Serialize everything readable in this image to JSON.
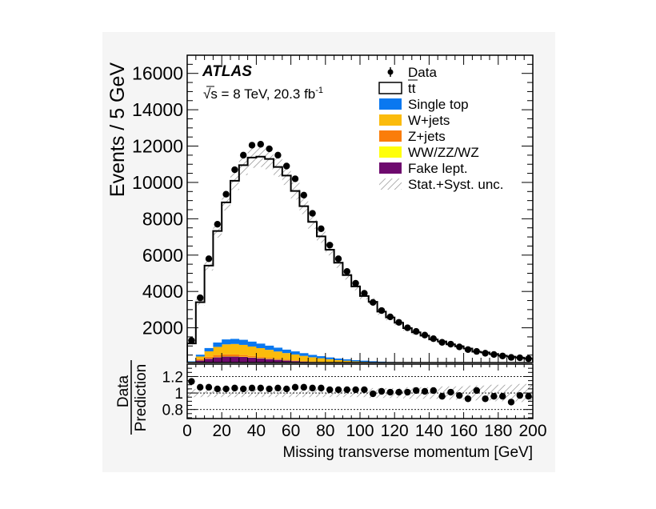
{
  "chart_data": {
    "type": "bar",
    "subtype": "stacked histogram with data points and ratio panel",
    "experiment_label": "ATLAS",
    "energy_lumi_label": "√s = 8 TeV, 20.3 fb",
    "lumi_superscript": "-1",
    "xlabel": "Missing transverse momentum [GeV]",
    "ylabel": "Events / 5 GeV",
    "ratio_ylabel_numerator": "Data",
    "ratio_ylabel_denominator": "Prediction",
    "xlim": [
      0,
      200
    ],
    "ylim": [
      0,
      17000
    ],
    "ratio_ylim": [
      0.69,
      1.35
    ],
    "x_ticks": [
      "0",
      "20",
      "40",
      "60",
      "80",
      "100",
      "120",
      "140",
      "160",
      "180",
      "200"
    ],
    "y_ticks": [
      "2000",
      "4000",
      "6000",
      "8000",
      "10000",
      "12000",
      "14000",
      "16000"
    ],
    "ratio_ticks": [
      "0.8",
      "1",
      "1.2"
    ],
    "ratio_gridlines": [
      0.8,
      1.0,
      1.2
    ],
    "legend_position": "top-right",
    "legend": [
      {
        "label": "Data",
        "kind": "marker"
      },
      {
        "label": "tt",
        "kind": "outline",
        "overbar": true
      },
      {
        "label": "Single top",
        "kind": "fill",
        "color": "#0a78f0"
      },
      {
        "label": "W+jets",
        "kind": "fill",
        "color": "#fbbb0c"
      },
      {
        "label": "Z+jets",
        "kind": "fill",
        "color": "#fa7d0a"
      },
      {
        "label": "WW/ZZ/WZ",
        "kind": "fill",
        "color": "#ffff0a"
      },
      {
        "label": "Fake lept.",
        "kind": "fill",
        "color": "#6e0a6e"
      },
      {
        "label": "Stat.+Syst. unc.",
        "kind": "hatch"
      }
    ],
    "bin_width": 5,
    "bin_centers": [
      2.5,
      7.5,
      12.5,
      17.5,
      22.5,
      27.5,
      32.5,
      37.5,
      42.5,
      47.5,
      52.5,
      57.5,
      62.5,
      67.5,
      72.5,
      77.5,
      82.5,
      87.5,
      92.5,
      97.5,
      102.5,
      107.5,
      112.5,
      117.5,
      122.5,
      127.5,
      132.5,
      137.5,
      142.5,
      147.5,
      152.5,
      157.5,
      162.5,
      167.5,
      172.5,
      177.5,
      182.5,
      187.5,
      192.5,
      197.5
    ],
    "data": [
      1300,
      3650,
      5800,
      7700,
      9350,
      10700,
      11500,
      12050,
      12100,
      11850,
      11500,
      10900,
      10200,
      9300,
      8300,
      7450,
      6550,
      5800,
      5100,
      4450,
      3900,
      3400,
      2950,
      2600,
      2300,
      2000,
      1800,
      1600,
      1400,
      1200,
      1100,
      950,
      800,
      700,
      600,
      530,
      450,
      370,
      350,
      300
    ],
    "series": [
      {
        "name": "Fake lept.",
        "values": [
          60,
          200,
          300,
          380,
          420,
          420,
          400,
          360,
          320,
          280,
          240,
          200,
          170,
          140,
          110,
          90,
          70,
          55,
          45,
          35,
          28,
          22,
          18,
          14,
          11,
          9,
          7,
          6,
          5,
          4,
          3,
          3,
          2,
          2,
          2,
          1,
          1,
          1,
          1,
          1
        ]
      },
      {
        "name": "WW/ZZ/WZ",
        "values": [
          5,
          10,
          15,
          20,
          20,
          20,
          20,
          20,
          20,
          18,
          16,
          14,
          12,
          10,
          9,
          8,
          7,
          6,
          5,
          4,
          4,
          3,
          3,
          2,
          2,
          2,
          2,
          1,
          1,
          1,
          1,
          1,
          1,
          1,
          1,
          1,
          1,
          1,
          1,
          1
        ]
      },
      {
        "name": "Z+jets",
        "values": [
          20,
          60,
          90,
          100,
          100,
          90,
          80,
          70,
          60,
          50,
          40,
          35,
          30,
          25,
          20,
          15,
          12,
          10,
          8,
          6,
          5,
          4,
          3,
          3,
          2,
          2,
          2,
          1,
          1,
          1,
          1,
          1,
          1,
          1,
          0,
          0,
          0,
          0,
          0,
          0
        ]
      },
      {
        "name": "W+jets",
        "values": [
          40,
          150,
          300,
          450,
          550,
          580,
          560,
          520,
          480,
          440,
          400,
          360,
          320,
          280,
          240,
          210,
          180,
          150,
          130,
          110,
          95,
          80,
          70,
          60,
          50,
          45,
          40,
          35,
          30,
          26,
          22,
          20,
          18,
          16,
          14,
          12,
          10,
          9,
          8,
          7
        ]
      },
      {
        "name": "Single top",
        "values": [
          30,
          100,
          180,
          240,
          270,
          280,
          280,
          270,
          250,
          230,
          210,
          190,
          170,
          150,
          130,
          115,
          100,
          88,
          76,
          66,
          58,
          50,
          44,
          38,
          33,
          29,
          25,
          22,
          19,
          17,
          15,
          13,
          12,
          10,
          9,
          8,
          7,
          6,
          5,
          5
        ]
      },
      {
        "name": "tt",
        "values": [
          985,
          2890,
          4535,
          6140,
          7540,
          8700,
          9610,
          10130,
          10290,
          10272,
          9944,
          9581,
          8828,
          8085,
          7321,
          6592,
          5931,
          5271,
          4636,
          4059,
          3560,
          3271,
          2752,
          2453,
          2182,
          1893,
          1674,
          1505,
          1304,
          1201,
          1048,
          942,
          826,
          650,
          619,
          528,
          451,
          398,
          345,
          296
        ]
      }
    ],
    "ratio": [
      1.14,
      1.07,
      1.07,
      1.05,
      1.05,
      1.06,
      1.05,
      1.06,
      1.06,
      1.05,
      1.06,
      1.05,
      1.07,
      1.07,
      1.06,
      1.06,
      1.04,
      1.04,
      1.04,
      1.04,
      1.04,
      0.99,
      1.02,
      1.01,
      1.01,
      1.01,
      1.03,
      1.02,
      1.03,
      0.96,
      1.01,
      0.97,
      0.93,
      1.03,
      0.93,
      0.96,
      0.96,
      0.89,
      0.97,
      0.96
    ],
    "stat_syst_unc_rel": [
      0.05,
      0.05,
      0.05,
      0.05,
      0.05,
      0.05,
      0.05,
      0.05,
      0.05,
      0.05,
      0.05,
      0.05,
      0.05,
      0.05,
      0.05,
      0.05,
      0.05,
      0.05,
      0.05,
      0.05,
      0.05,
      0.06,
      0.06,
      0.06,
      0.06,
      0.07,
      0.07,
      0.07,
      0.07,
      0.08,
      0.08,
      0.08,
      0.09,
      0.09,
      0.09,
      0.1,
      0.1,
      0.1,
      0.11,
      0.11
    ]
  }
}
